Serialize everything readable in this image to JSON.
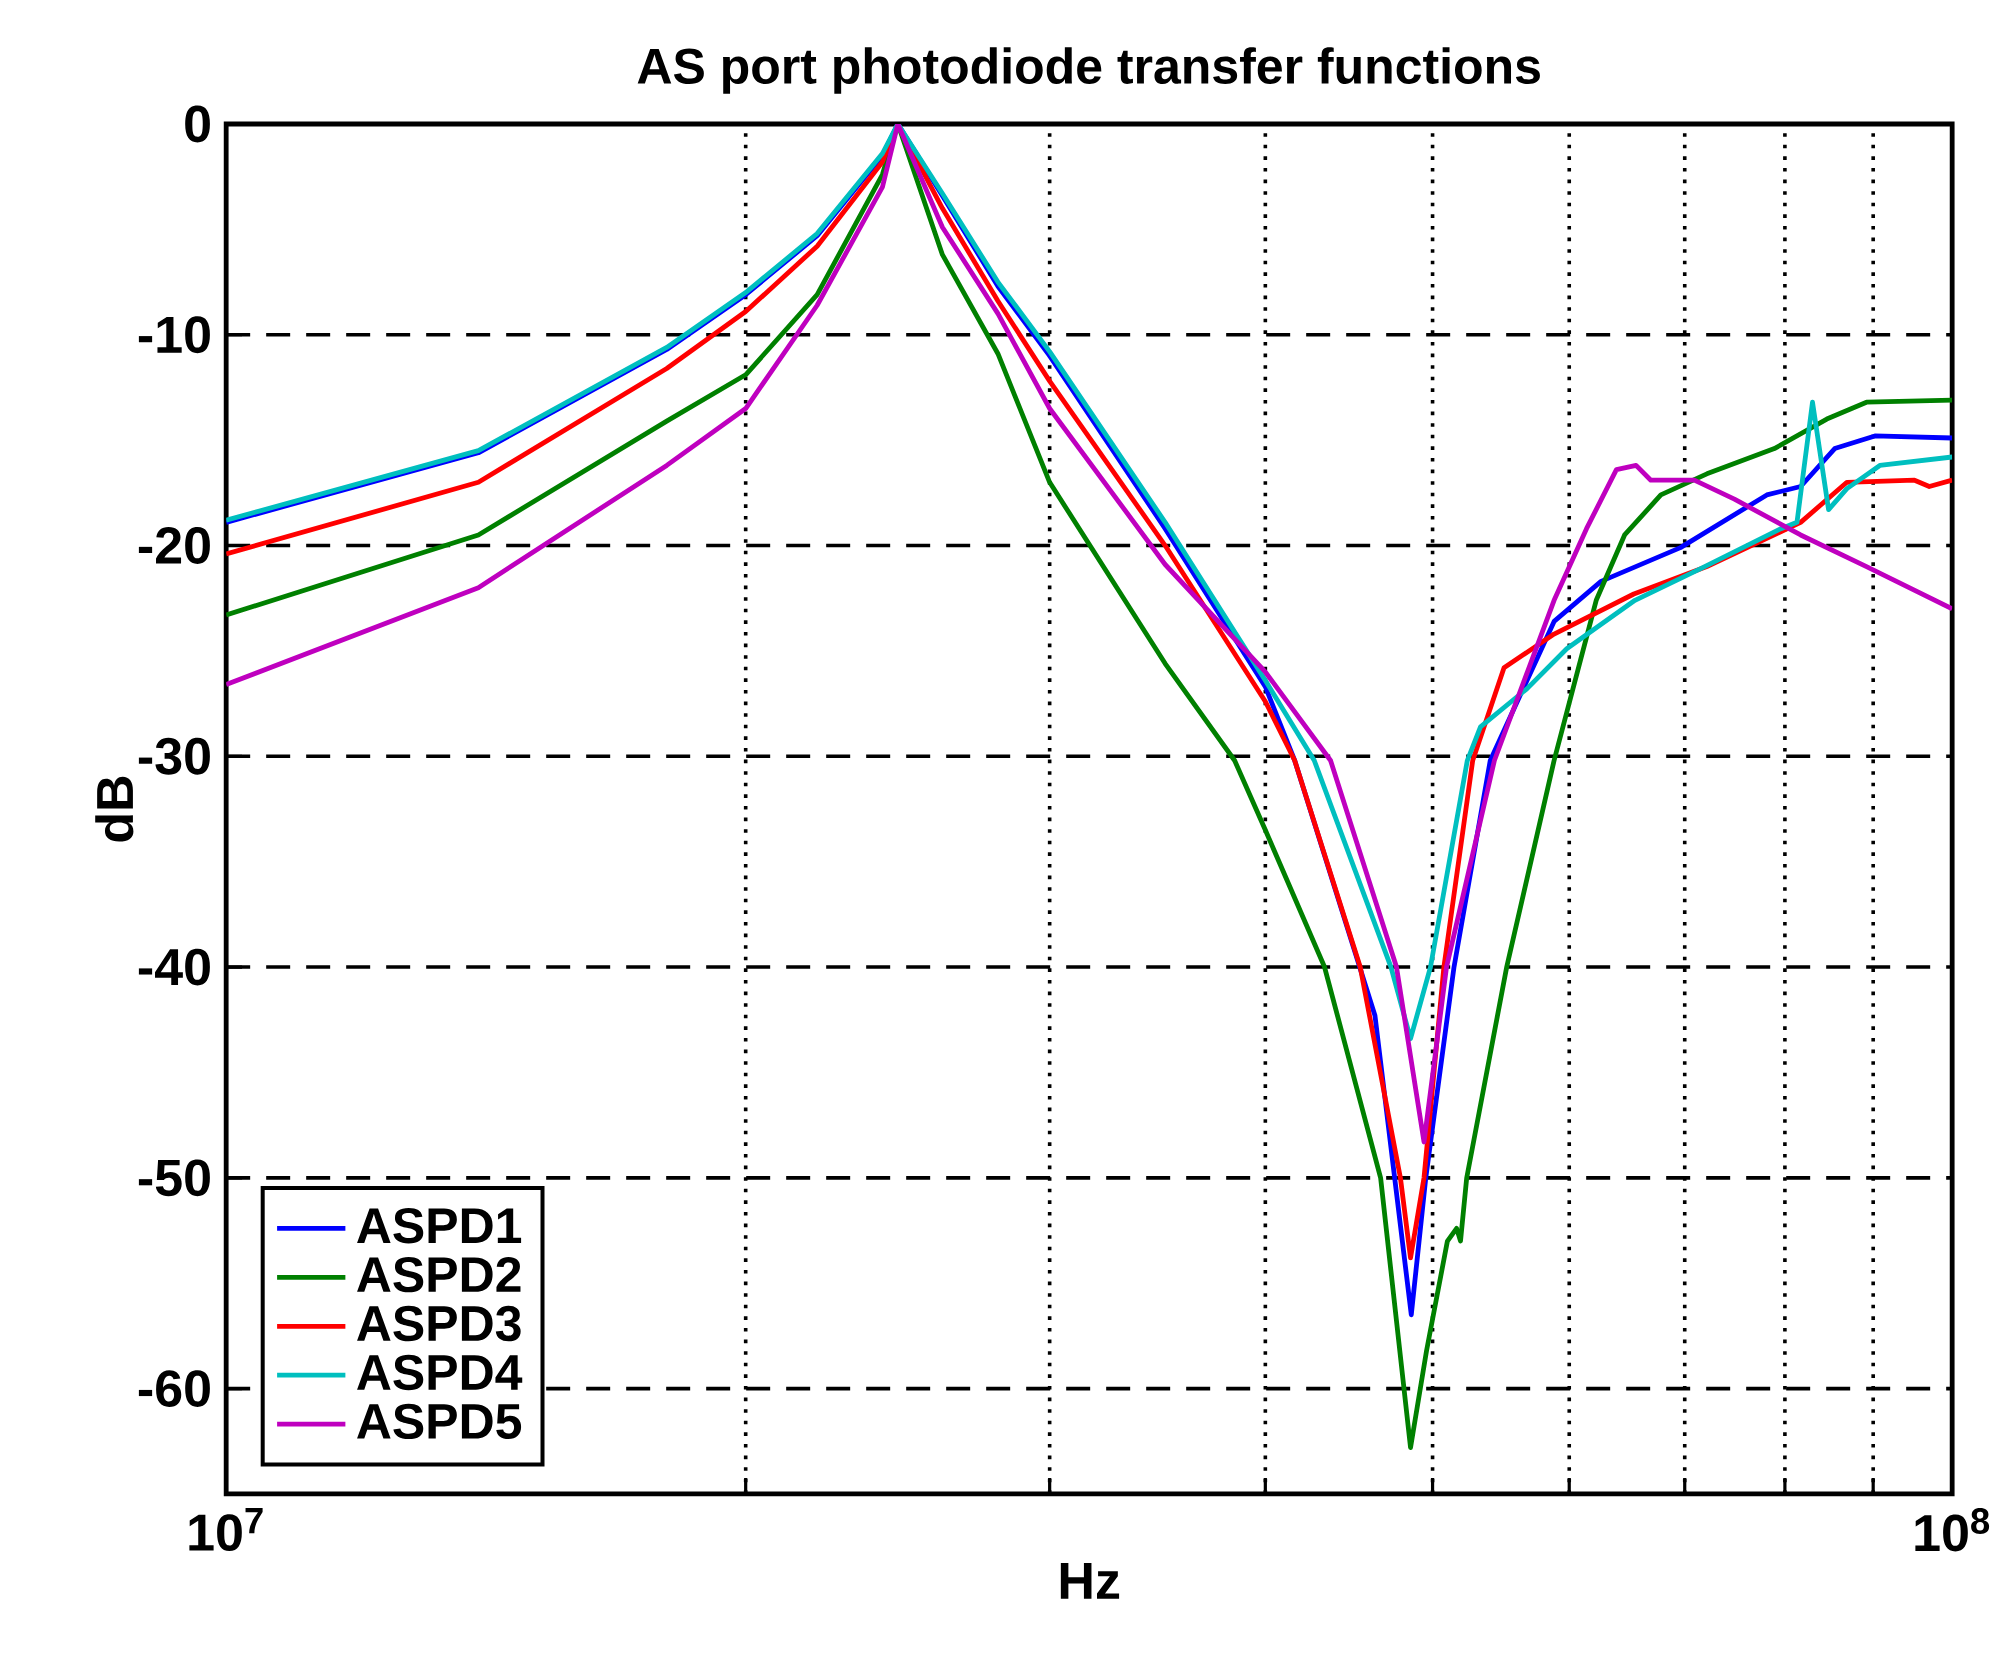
{
  "chart_data": {
    "type": "line",
    "title": "AS port photodiode transfer functions",
    "xlabel": "Hz",
    "ylabel": "dB",
    "log": "x",
    "xlim": [
      10000000.0,
      100000000.0
    ],
    "ylim": [
      -65,
      0
    ],
    "xticks": [
      {
        "value": 10000000.0,
        "label": "10$^{7}$"
      },
      {
        "value": 20000000.0,
        "label": null
      },
      {
        "value": 30000000.0,
        "label": null
      },
      {
        "value": 40000000.0,
        "label": null
      },
      {
        "value": 50000000.0,
        "label": null
      },
      {
        "value": 60000000.0,
        "label": null
      },
      {
        "value": 70000000.0,
        "label": null
      },
      {
        "value": 80000000.0,
        "label": null
      },
      {
        "value": 90000000.0,
        "label": null
      },
      {
        "value": 100000000.0,
        "label": "10$^{8}$"
      }
    ],
    "yticks": [
      -60,
      -50,
      -40,
      -30,
      -20,
      -10,
      0
    ],
    "grid": true,
    "legend": "bottom left",
    "series": [
      {
        "name": "ASPD1",
        "color": "#0000ff",
        "x": [
          10000000.0,
          14000000.0,
          18000000.0,
          20000000.0,
          22000000.0,
          24000000.0,
          24500000.0,
          26000000.0,
          28000000.0,
          30000000.0,
          35000000.0,
          40000000.0,
          41600000.0,
          46300000.0,
          48600000.0,
          49550000.0,
          51450000.0,
          54000000.0,
          58800000.0,
          62600000.0,
          69600000.0,
          78100000.0,
          81700000.0,
          85500000.0,
          90200000.0,
          100000000.0
        ],
        "values": [
          -18.9,
          -15.6,
          -10.7,
          -8.1,
          -5.3,
          -1.5,
          0,
          -3.4,
          -7.7,
          -11.0,
          -19.2,
          -26.7,
          -30.2,
          -42.3,
          -56.5,
          -50,
          -40,
          -30.2,
          -23.6,
          -21.7,
          -20.1,
          -17.6,
          -17.2,
          -15.4,
          -14.8,
          -14.9
        ]
      },
      {
        "name": "ASPD2",
        "color": "#008000",
        "x": [
          10000000.0,
          14000000.0,
          18000000.0,
          20000000.0,
          22000000.0,
          24000000.0,
          24500000.0,
          26000000.0,
          28000000.0,
          30000000.0,
          35000000.0,
          38400000.0,
          40000000.0,
          43290000.0,
          46650000.0,
          48550000.0,
          49600000.0,
          51000000.0,
          51630000.0,
          51900000.0,
          52330000.0,
          55200000.0,
          58800000.0,
          62200000.0,
          64600000.0,
          67800000.0,
          72100000.0,
          78900000.0,
          84600000.0,
          89200000.0,
          100000000.0
        ],
        "values": [
          -23.3,
          -19.5,
          -14.1,
          -11.9,
          -8.1,
          -2.4,
          0,
          -6.2,
          -10.9,
          -17.0,
          -25.6,
          -30.2,
          -33.5,
          -40,
          -50,
          -62.8,
          -58.2,
          -53.0,
          -52.4,
          -53.0,
          -50,
          -40,
          -30.2,
          -22.6,
          -19.5,
          -17.6,
          -16.6,
          -15.4,
          -14.0,
          -13.2,
          -13.1
        ]
      },
      {
        "name": "ASPD3",
        "color": "#ff0000",
        "x": [
          10000000.0,
          14000000.0,
          18000000.0,
          20000000.0,
          22000000.0,
          24000000.0,
          24500000.0,
          26000000.0,
          28000000.0,
          30000000.0,
          35000000.0,
          40000000.0,
          41600000.0,
          45400000.0,
          47900000.0,
          48550000.0,
          49430000.0,
          50760000.0,
          52750000.0,
          55000000.0,
          58800000.0,
          65400000.0,
          72100000.0,
          81700000.0,
          86900000.0,
          95100000.0,
          97000000.0,
          100000000.0
        ],
        "values": [
          -20.4,
          -17.0,
          -11.6,
          -8.9,
          -5.8,
          -1.8,
          0,
          -4.0,
          -8.4,
          -12.2,
          -20.0,
          -27.4,
          -30.2,
          -40,
          -50,
          -53.8,
          -50,
          -40,
          -30.2,
          -25.8,
          -24.2,
          -22.3,
          -21.0,
          -18.9,
          -17.0,
          -16.9,
          -17.2,
          -16.9
        ]
      },
      {
        "name": "ASPD4",
        "color": "#00bfbf",
        "x": [
          10000000.0,
          14000000.0,
          18000000.0,
          20000000.0,
          22000000.0,
          24000000.0,
          24500000.0,
          26000000.0,
          28000000.0,
          30000000.0,
          35000000.0,
          40000000.0,
          42700000.0,
          47300000.0,
          48550000.0,
          49860000.0,
          52370000.0,
          53300000.0,
          56700000.0,
          59800000.0,
          65500000.0,
          71500000.0,
          79600000.0,
          81300000.0,
          83000000.0,
          84800000.0,
          86900000.0,
          90800000.0,
          100000000.0
        ],
        "values": [
          -18.8,
          -15.5,
          -10.6,
          -8.0,
          -5.2,
          -1.4,
          0,
          -3.3,
          -7.5,
          -10.8,
          -18.9,
          -26.4,
          -30.2,
          -40,
          -43.4,
          -40,
          -30.2,
          -28.6,
          -26.8,
          -24.9,
          -22.6,
          -21.1,
          -19.2,
          -18.9,
          -13.2,
          -18.3,
          -17.3,
          -16.2,
          -15.8
        ]
      },
      {
        "name": "ASPD5",
        "color": "#bf00bf",
        "x": [
          10000000.0,
          14000000.0,
          18000000.0,
          20000000.0,
          22000000.0,
          24000000.0,
          24500000.0,
          26000000.0,
          28000000.0,
          30000000.0,
          35000000.0,
          40000000.0,
          43640000.0,
          47650000.0,
          49430000.0,
          50940000.0,
          54300000.0,
          58800000.0,
          61400000.0,
          63900000.0,
          65600000.0,
          66900000.0,
          70900000.0,
          74800000.0,
          81700000.0,
          89200000.0,
          100000000.0
        ],
        "values": [
          -26.6,
          -22.0,
          -16.2,
          -13.5,
          -8.6,
          -3.0,
          0,
          -4.9,
          -9.0,
          -13.5,
          -20.9,
          -26.0,
          -30.2,
          -40,
          -48.3,
          -40,
          -30.2,
          -22.6,
          -19.2,
          -16.4,
          -16.2,
          -16.9,
          -16.9,
          -17.8,
          -19.5,
          -21.0,
          -23.0
        ]
      }
    ]
  }
}
